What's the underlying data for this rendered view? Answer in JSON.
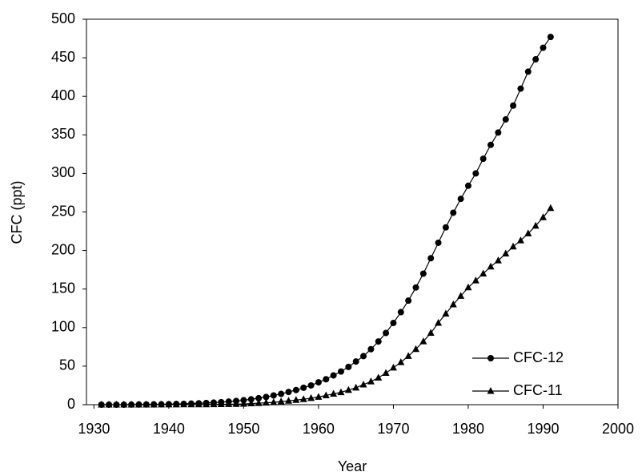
{
  "chart_data": {
    "type": "line",
    "x_label": "Year",
    "y_label": "CFC (ppt)",
    "x": [
      1931,
      1932,
      1933,
      1934,
      1935,
      1936,
      1937,
      1938,
      1939,
      1940,
      1941,
      1942,
      1943,
      1944,
      1945,
      1946,
      1947,
      1948,
      1949,
      1950,
      1951,
      1952,
      1953,
      1954,
      1955,
      1956,
      1957,
      1958,
      1959,
      1960,
      1961,
      1962,
      1963,
      1964,
      1965,
      1966,
      1967,
      1968,
      1969,
      1970,
      1971,
      1972,
      1973,
      1974,
      1975,
      1976,
      1977,
      1978,
      1979,
      1980,
      1981,
      1982,
      1983,
      1984,
      1985,
      1986,
      1987,
      1988,
      1989,
      1990,
      1991
    ],
    "series": [
      {
        "name": "CFC-12",
        "color": "#000000",
        "marker": "circle",
        "values": [
          0,
          0,
          0,
          0,
          0.1,
          0.2,
          0.3,
          0.4,
          0.5,
          0.7,
          0.9,
          1.1,
          1.4,
          1.8,
          2.2,
          2.7,
          3.3,
          4,
          4.8,
          5.8,
          7,
          8.4,
          10,
          12,
          14,
          16.5,
          19,
          22,
          25,
          29,
          33,
          38,
          43,
          49,
          56,
          63,
          72,
          82,
          93,
          106,
          120,
          135,
          152,
          170,
          190,
          210,
          230,
          249,
          267,
          284,
          300,
          319,
          337,
          353,
          370,
          388,
          410,
          432,
          448,
          463,
          477
        ]
      },
      {
        "name": "CFC-11",
        "color": "#000000",
        "marker": "triangle",
        "values": [
          0,
          0,
          0,
          0,
          0,
          0,
          0,
          0,
          0.1,
          0.1,
          0.1,
          0.2,
          0.2,
          0.3,
          0.3,
          0.4,
          0.5,
          0.6,
          0.8,
          1,
          1.5,
          2,
          2.5,
          3,
          4,
          5,
          6,
          7,
          8.5,
          10,
          12,
          14,
          16,
          19,
          22,
          26,
          30,
          35,
          41,
          48,
          55,
          63,
          72,
          82,
          93,
          106,
          118,
          130,
          141,
          152,
          161,
          170,
          179,
          187,
          196,
          205,
          213,
          222,
          232,
          243,
          255
        ]
      }
    ],
    "xlim": [
      1929,
      2000
    ],
    "xticks": [
      1930,
      1940,
      1950,
      1960,
      1970,
      1980,
      1990,
      2000
    ],
    "ylim": [
      0,
      500
    ],
    "yticks": [
      0,
      50,
      100,
      150,
      200,
      250,
      300,
      350,
      400,
      450,
      500
    ],
    "legend": "lower right"
  }
}
